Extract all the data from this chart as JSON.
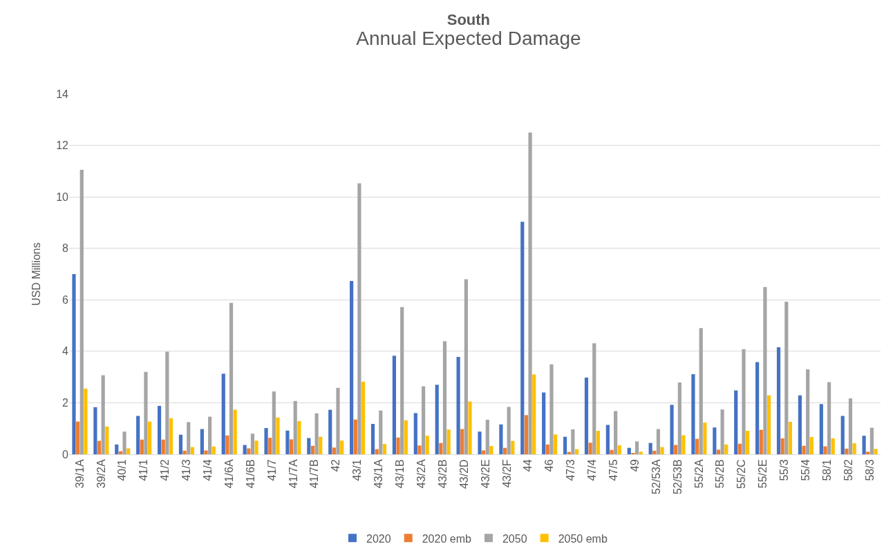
{
  "chart_data": {
    "type": "bar",
    "title": "South",
    "subtitle": "Annual Expected Damage",
    "ylabel": "USD Millions",
    "categories": [
      "39/1A",
      "39/2A",
      "40/1",
      "41/1",
      "41/2",
      "41/3",
      "41/4",
      "41/6A",
      "41/6B",
      "41/7",
      "41/7A",
      "41/7B",
      "42",
      "43/1",
      "43/1A",
      "43/1B",
      "43/2A",
      "43/2B",
      "43/2D",
      "43/2E",
      "43/2F",
      "44",
      "46",
      "47/3",
      "47/4",
      "47/5",
      "49",
      "52/53A",
      "52/53B",
      "55/2A",
      "55/2B",
      "55/2C",
      "55/2E",
      "55/3",
      "55/4",
      "58/1",
      "58/2",
      "58/3"
    ],
    "series": [
      {
        "name": "2020",
        "color": "#4472c4",
        "values": [
          7.0,
          1.83,
          0.38,
          1.49,
          1.88,
          0.76,
          0.98,
          3.13,
          0.36,
          1.02,
          0.92,
          0.63,
          1.73,
          6.73,
          1.18,
          3.83,
          1.6,
          2.7,
          3.78,
          0.88,
          1.16,
          9.03,
          2.4,
          0.68,
          2.98,
          1.14,
          0.25,
          0.44,
          1.92,
          3.11,
          1.04,
          2.48,
          3.58,
          4.16,
          2.29,
          1.95,
          1.49,
          0.72
        ]
      },
      {
        "name": "2020 emb",
        "color": "#ed7d31",
        "values": [
          1.27,
          0.52,
          0.12,
          0.57,
          0.57,
          0.14,
          0.15,
          0.73,
          0.23,
          0.64,
          0.58,
          0.33,
          0.26,
          1.35,
          0.2,
          0.65,
          0.34,
          0.44,
          0.98,
          0.15,
          0.25,
          1.52,
          0.38,
          0.09,
          0.45,
          0.17,
          0.04,
          0.14,
          0.36,
          0.6,
          0.18,
          0.41,
          0.95,
          0.62,
          0.33,
          0.31,
          0.22,
          0.1
        ]
      },
      {
        "name": "2050",
        "color": "#a5a5a5",
        "values": [
          11.05,
          3.07,
          0.88,
          3.2,
          3.98,
          1.25,
          1.46,
          5.88,
          0.8,
          2.44,
          2.07,
          1.59,
          2.58,
          10.53,
          1.7,
          5.72,
          2.64,
          4.39,
          6.8,
          1.34,
          1.84,
          12.5,
          3.49,
          0.97,
          4.31,
          1.68,
          0.5,
          0.98,
          2.79,
          4.9,
          1.74,
          4.08,
          6.5,
          5.93,
          3.3,
          2.8,
          2.17,
          1.03
        ]
      },
      {
        "name": "2050 emb",
        "color": "#ffc000",
        "values": [
          2.55,
          1.08,
          0.23,
          1.27,
          1.4,
          0.28,
          0.3,
          1.73,
          0.53,
          1.43,
          1.29,
          0.68,
          0.53,
          2.82,
          0.4,
          1.32,
          0.72,
          0.96,
          2.05,
          0.32,
          0.52,
          3.1,
          0.77,
          0.2,
          0.91,
          0.35,
          0.1,
          0.28,
          0.74,
          1.23,
          0.38,
          0.91,
          2.29,
          1.26,
          0.67,
          0.62,
          0.43,
          0.21
        ]
      }
    ],
    "ylim": [
      0,
      14
    ],
    "yticks": [
      0,
      2,
      4,
      6,
      8,
      10,
      12,
      14
    ],
    "grid": "y",
    "legend": "bottom"
  }
}
